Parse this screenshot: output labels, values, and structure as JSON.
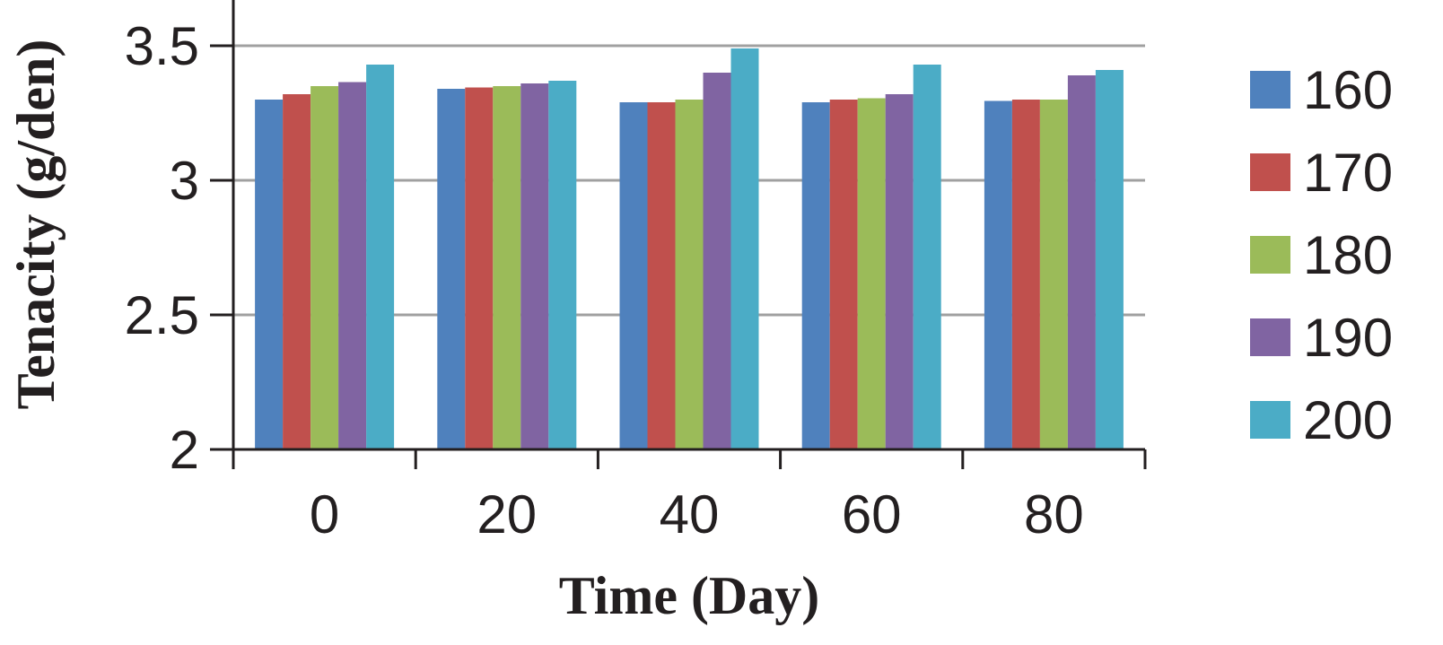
{
  "chart_data": {
    "type": "bar",
    "title": "",
    "xlabel": "Time (Day)",
    "ylabel": "Tenacity (g/den)",
    "categories": [
      "0",
      "20",
      "40",
      "60",
      "80"
    ],
    "yticks": [
      "2",
      "2.5",
      "3",
      "3.5"
    ],
    "ylim": [
      2,
      3.67
    ],
    "grid": true,
    "legend_position": "right",
    "series": [
      {
        "name": "160",
        "color": "#4f81bd",
        "values": [
          3.3,
          3.34,
          3.29,
          3.29,
          3.295
        ]
      },
      {
        "name": "170",
        "color": "#c0504d",
        "values": [
          3.32,
          3.345,
          3.29,
          3.3,
          3.3
        ]
      },
      {
        "name": "180",
        "color": "#9bbb59",
        "values": [
          3.35,
          3.35,
          3.3,
          3.305,
          3.3
        ]
      },
      {
        "name": "190",
        "color": "#8064a2",
        "values": [
          3.365,
          3.36,
          3.4,
          3.32,
          3.39
        ]
      },
      {
        "name": "200",
        "color": "#4bacc6",
        "values": [
          3.43,
          3.37,
          3.49,
          3.43,
          3.41
        ]
      }
    ]
  }
}
